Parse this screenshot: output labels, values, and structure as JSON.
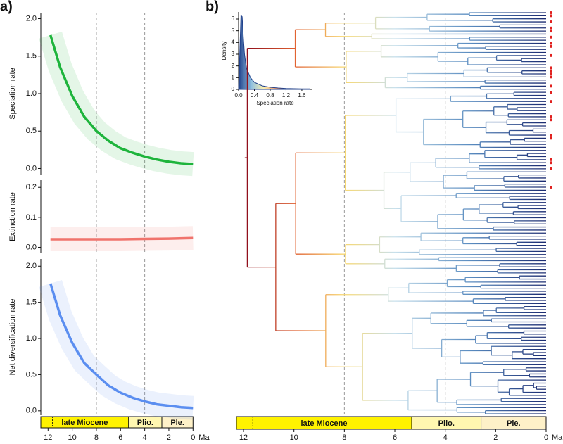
{
  "chart_data": [
    {
      "type": "line",
      "panel_label": "a)",
      "ylabel": "Speciation rate",
      "x": [
        11.8,
        11,
        10,
        9,
        8,
        7,
        6,
        5,
        4,
        3,
        2,
        1,
        0
      ],
      "values": [
        1.78,
        1.35,
        0.97,
        0.69,
        0.5,
        0.37,
        0.27,
        0.21,
        0.16,
        0.12,
        0.09,
        0.07,
        0.06
      ],
      "color": "#1eb43c",
      "xlim": [
        12.6,
        -0.1
      ],
      "ylim": [
        -0.08,
        2.08
      ],
      "yticks": [
        {
          "value": 0,
          "label": "0.0"
        },
        0.5,
        {
          "value": 1,
          "label": "1.0"
        },
        1.5,
        {
          "value": 2,
          "label": "2.0"
        }
      ],
      "reference_lines": [
        8,
        4
      ]
    },
    {
      "type": "line",
      "ylabel": "Extinction rate",
      "x": [
        11.8,
        10,
        8,
        6,
        4,
        2,
        0
      ],
      "values": [
        0.027,
        0.027,
        0.027,
        0.027,
        0.028,
        0.029,
        0.031
      ],
      "color": "#f0736c",
      "xlim": [
        12.6,
        -0.1
      ],
      "ylim": [
        -0.02,
        0.224
      ],
      "yticks": [
        {
          "value": 0,
          "label": "0.0"
        },
        0.1,
        0.2
      ],
      "reference_lines": [
        8,
        4
      ]
    },
    {
      "type": "line",
      "ylabel": "Net diversification rate",
      "x": [
        11.8,
        11,
        10,
        9,
        8,
        7,
        6,
        5,
        4,
        3,
        2,
        1,
        0
      ],
      "values": [
        1.76,
        1.32,
        0.94,
        0.66,
        0.5,
        0.35,
        0.25,
        0.18,
        0.13,
        0.09,
        0.07,
        0.05,
        0.04
      ],
      "color": "#5b8ef0",
      "xlim": [
        12.6,
        -0.1
      ],
      "ylim": [
        -0.06,
        2.1
      ],
      "yticks": [
        {
          "value": 0,
          "label": "0.0"
        },
        0.5,
        {
          "value": 1,
          "label": "1.0"
        },
        1.5,
        {
          "value": 2,
          "label": "2.0"
        }
      ],
      "reference_lines": [
        8,
        4
      ],
      "xticks": [
        12,
        10,
        8,
        6,
        4,
        2,
        0
      ],
      "x_unit": "Ma",
      "periods": [
        {
          "name": "late Miocene",
          "start": 11.63,
          "end": 5.33,
          "color": "#fff200"
        },
        {
          "name": "Plio.",
          "start": 5.33,
          "end": 2.58,
          "color": "#fff7b0"
        },
        {
          "name": "Ple.",
          "start": 2.58,
          "end": 0,
          "color": "#fef1c8"
        }
      ]
    },
    {
      "type": "area",
      "xlabel": "Speciation rate",
      "ylabel": "Density",
      "x": [
        0,
        0.03,
        0.06,
        0.09,
        0.12,
        0.15,
        0.2,
        0.3,
        0.4,
        0.6,
        0.8,
        1.0,
        1.2,
        1.4,
        1.6,
        1.8
      ],
      "values": [
        0,
        3,
        6.3,
        6.2,
        4.5,
        3.0,
        1.8,
        1.0,
        0.6,
        0.3,
        0.18,
        0.12,
        0.08,
        0.06,
        0.05,
        0.04
      ],
      "xlim": [
        0,
        1.85
      ],
      "ylim": [
        0,
        6.6
      ],
      "xticks": [
        {
          "value": 0,
          "label": "0.0"
        },
        0.4,
        0.8,
        1.2,
        1.6
      ],
      "yticks": [
        0,
        1,
        2,
        3,
        4,
        5,
        6
      ]
    },
    {
      "type": "tree",
      "panel_label": "b)",
      "xlim": [
        12.28,
        0
      ],
      "xticks": [
        12,
        10,
        8,
        6,
        4,
        2,
        0
      ],
      "x_unit": "Ma",
      "reference_lines": [
        8,
        4
      ],
      "periods": [
        {
          "name": "late Miocene",
          "start": 11.63,
          "end": 5.33,
          "color": "#fff200"
        },
        {
          "name": "Plio.",
          "start": 5.33,
          "end": 2.58,
          "color": "#fff7b0"
        },
        {
          "name": "Ple.",
          "start": 2.58,
          "end": 0,
          "color": "#fef1c8"
        }
      ]
    }
  ]
}
